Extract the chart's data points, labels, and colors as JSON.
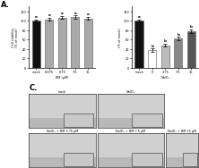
{
  "panel_A_left": {
    "categories": [
      "mock",
      "0.075",
      "0.75",
      "7.5",
      "15"
    ],
    "values": [
      100,
      103,
      107,
      108,
      105
    ],
    "bar_colors": [
      "#111111",
      "#aaaaaa",
      "#aaaaaa",
      "#aaaaaa",
      "#aaaaaa"
    ],
    "ylabel": "Cell viability\n(% of mock)",
    "xlabel": "BM (µM)",
    "ylim": [
      0,
      130
    ],
    "yticks": [
      0,
      20,
      40,
      60,
      80,
      100,
      120
    ],
    "error_bars": [
      3,
      3,
      3,
      3,
      3
    ],
    "letter_labels": [
      "a",
      "a",
      "a",
      "a",
      "a"
    ]
  },
  "panel_A_right": {
    "categories": [
      "mock",
      "0",
      "3.75",
      "7.5",
      "15"
    ],
    "values": [
      100,
      38,
      48,
      62,
      78
    ],
    "bar_colors": [
      "#111111",
      "#ffffff",
      "#bbbbbb",
      "#888888",
      "#555555"
    ],
    "ylabel": "(% of mock)",
    "xlabel": "NaIO₃",
    "ylim": [
      0,
      130
    ],
    "yticks": [
      0,
      20,
      40,
      60,
      80,
      100,
      120
    ],
    "error_bars": [
      3,
      3,
      3,
      4,
      4
    ],
    "letter_labels": [
      "a",
      "b",
      "b",
      "b",
      "b"
    ]
  },
  "panel_label_A": "A.",
  "panel_label_C": "C.",
  "mock_label": "mock",
  "NaIO3_label": "NaIO₃",
  "BM375_label": "NaIO₃ + BM 3.75 µM",
  "BM75_label": "NaIO₃ + BM 7.5 µM",
  "BM15_label": "NaIO₃ + BM 15 µM",
  "bg_color": "#ffffff",
  "cell_bg_outer": "#b8b8b8",
  "cell_bg_inner": "#d0d0d0",
  "inset_bg": "#c8c8c8",
  "border_color": "#333333"
}
